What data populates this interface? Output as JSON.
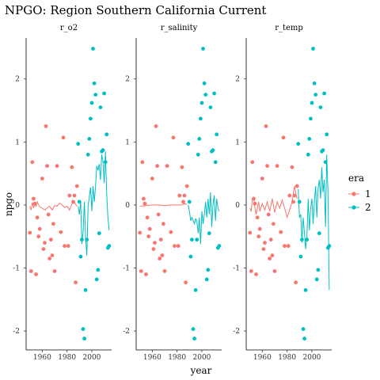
{
  "chart_data": {
    "type": "scatter",
    "title": "NPGO: Region Southern California Current",
    "xlabel": "year",
    "ylabel": "npgo",
    "xlim": [
      1947,
      2016
    ],
    "ylim": [
      -2.3,
      2.65
    ],
    "x_ticks": [
      1960,
      1980,
      2000
    ],
    "y_ticks": [
      -2,
      -1,
      0,
      1,
      2
    ],
    "grid": false,
    "legend": {
      "title": "era",
      "placement": "right",
      "entries": [
        {
          "label": "1",
          "color": "#F8766D"
        },
        {
          "label": "2",
          "color": "#00BFC4"
        }
      ]
    },
    "panels": [
      "r_o2",
      "r_salinity",
      "r_temp"
    ],
    "points": {
      "era1": [
        [
          1950,
          -0.44
        ],
        [
          1951,
          -1.05
        ],
        [
          1952,
          0.68
        ],
        [
          1953,
          0.1
        ],
        [
          1954,
          0.02
        ],
        [
          1955,
          -1.1
        ],
        [
          1956,
          -0.2
        ],
        [
          1957,
          -0.5
        ],
        [
          1958,
          -0.38
        ],
        [
          1960,
          0.42
        ],
        [
          1961,
          -0.7
        ],
        [
          1962,
          -0.6
        ],
        [
          1963,
          1.25
        ],
        [
          1964,
          0.62
        ],
        [
          1965,
          -0.15
        ],
        [
          1966,
          -0.85
        ],
        [
          1967,
          -0.55
        ],
        [
          1968,
          -0.8
        ],
        [
          1969,
          -0.3
        ],
        [
          1970,
          -1.05
        ],
        [
          1972,
          0.62
        ],
        [
          1975,
          -0.43
        ],
        [
          1977,
          1.07
        ],
        [
          1978,
          -0.65
        ],
        [
          1981,
          -0.65
        ],
        [
          1982,
          0.15
        ],
        [
          1984,
          0.6
        ],
        [
          1985,
          0.05
        ],
        [
          1986,
          0.15
        ],
        [
          1987,
          -1.23
        ],
        [
          1988,
          0.3
        ]
      ],
      "era2": [
        [
          1989,
          0.97
        ],
        [
          1990,
          0.05
        ],
        [
          1991,
          -0.82
        ],
        [
          1992,
          -0.55
        ],
        [
          1993,
          -1.97
        ],
        [
          1994,
          -2.12
        ],
        [
          1995,
          -1.35
        ],
        [
          1996,
          -0.55
        ],
        [
          1997,
          0.8
        ],
        [
          1998,
          1.05
        ],
        [
          1999,
          1.37
        ],
        [
          2000,
          1.62
        ],
        [
          2001,
          2.48
        ],
        [
          2002,
          1.93
        ],
        [
          2003,
          1.75
        ],
        [
          2004,
          -1.18
        ],
        [
          2005,
          -1.03
        ],
        [
          2006,
          -0.45
        ],
        [
          2007,
          1.55
        ],
        [
          2008,
          0.85
        ],
        [
          2009,
          0.87
        ],
        [
          2010,
          1.77
        ],
        [
          2011,
          0.68
        ],
        [
          2012,
          1.12
        ],
        [
          2013,
          -0.68
        ],
        [
          2014,
          -0.65
        ]
      ]
    },
    "series": [
      {
        "panel": "r_o2",
        "era1": [
          [
            1950,
            -0.02
          ],
          [
            1951,
            -0.08
          ],
          [
            1952,
            0.04
          ],
          [
            1953,
            -0.05
          ],
          [
            1954,
            0.02
          ],
          [
            1955,
            -0.02
          ],
          [
            1956,
            0.05
          ],
          [
            1957,
            0.0
          ],
          [
            1958,
            -0.03
          ],
          [
            1960,
            -0.05
          ],
          [
            1962,
            -0.08
          ],
          [
            1964,
            -0.05
          ],
          [
            1966,
            -0.02
          ],
          [
            1968,
            -0.08
          ],
          [
            1970,
            -0.01
          ],
          [
            1972,
            -0.02
          ],
          [
            1974,
            0.03
          ],
          [
            1976,
            0.0
          ],
          [
            1978,
            -0.04
          ],
          [
            1980,
            -0.02
          ],
          [
            1982,
            -0.08
          ],
          [
            1984,
            0.02
          ],
          [
            1986,
            0.04
          ],
          [
            1988,
            -0.02
          ]
        ],
        "era2": [
          [
            1989,
            -0.02
          ],
          [
            1990,
            -0.15
          ],
          [
            1991,
            0.05
          ],
          [
            1992,
            -0.62
          ],
          [
            1993,
            -0.42
          ],
          [
            1994,
            0.05
          ],
          [
            1995,
            -0.52
          ],
          [
            1996,
            -0.8
          ],
          [
            1997,
            0.0
          ],
          [
            1998,
            0.12
          ],
          [
            1999,
            0.28
          ],
          [
            2000,
            -0.1
          ],
          [
            2001,
            0.3
          ],
          [
            2002,
            0.05
          ],
          [
            2003,
            0.3
          ],
          [
            2004,
            0.62
          ],
          [
            2005,
            0.55
          ],
          [
            2006,
            0.65
          ],
          [
            2007,
            0.4
          ],
          [
            2008,
            0.8
          ],
          [
            2009,
            0.7
          ],
          [
            2010,
            0.35
          ],
          [
            2011,
            0.85
          ],
          [
            2012,
            0.2
          ],
          [
            2013,
            -0.2
          ],
          [
            2014,
            -0.4
          ]
        ]
      },
      {
        "panel": "r_salinity",
        "era1": [
          [
            1950,
            -0.02
          ],
          [
            1955,
            -0.01
          ],
          [
            1960,
            0.0
          ],
          [
            1965,
            0.0
          ],
          [
            1970,
            -0.01
          ],
          [
            1975,
            0.0
          ],
          [
            1980,
            0.0
          ],
          [
            1984,
            0.0
          ],
          [
            1986,
            0.02
          ],
          [
            1988,
            0.01
          ]
        ],
        "era2": [
          [
            1989,
            0.0
          ],
          [
            1990,
            -0.1
          ],
          [
            1991,
            -0.25
          ],
          [
            1992,
            -0.2
          ],
          [
            1993,
            -0.25
          ],
          [
            1994,
            -0.3
          ],
          [
            1995,
            -0.22
          ],
          [
            1996,
            -0.25
          ],
          [
            1997,
            -0.45
          ],
          [
            1998,
            -0.2
          ],
          [
            1999,
            -0.62
          ],
          [
            2000,
            -0.1
          ],
          [
            2001,
            -0.3
          ],
          [
            2002,
            -0.15
          ],
          [
            2003,
            0.05
          ],
          [
            2004,
            -0.2
          ],
          [
            2005,
            0.1
          ],
          [
            2006,
            -0.15
          ],
          [
            2007,
            0.2
          ],
          [
            2008,
            -0.35
          ],
          [
            2009,
            0.0
          ],
          [
            2010,
            0.15
          ],
          [
            2011,
            -0.25
          ],
          [
            2012,
            0.1
          ],
          [
            2013,
            -0.05
          ],
          [
            2014,
            -0.1
          ]
        ]
      },
      {
        "panel": "r_temp",
        "era1": [
          [
            1950,
            -0.05
          ],
          [
            1951,
            -0.1
          ],
          [
            1952,
            0.1
          ],
          [
            1953,
            0.12
          ],
          [
            1954,
            -0.05
          ],
          [
            1955,
            -0.15
          ],
          [
            1956,
            -0.05
          ],
          [
            1957,
            0.05
          ],
          [
            1958,
            -0.1
          ],
          [
            1960,
            0.02
          ],
          [
            1962,
            -0.08
          ],
          [
            1964,
            0.05
          ],
          [
            1966,
            -0.1
          ],
          [
            1968,
            0.1
          ],
          [
            1970,
            -0.12
          ],
          [
            1972,
            0.05
          ],
          [
            1974,
            -0.05
          ],
          [
            1976,
            0.08
          ],
          [
            1978,
            -0.05
          ],
          [
            1980,
            -0.2
          ],
          [
            1982,
            -0.08
          ],
          [
            1984,
            0.05
          ],
          [
            1986,
            0.3
          ],
          [
            1988,
            0.1
          ]
        ],
        "era2": [
          [
            1989,
            0.25
          ],
          [
            1990,
            -0.2
          ],
          [
            1991,
            -0.15
          ],
          [
            1992,
            -0.6
          ],
          [
            1993,
            -0.2
          ],
          [
            1994,
            -0.45
          ],
          [
            1995,
            -0.7
          ],
          [
            1996,
            -0.5
          ],
          [
            1997,
            0.1
          ],
          [
            1998,
            -0.4
          ],
          [
            1999,
            -0.05
          ],
          [
            2000,
            0.1
          ],
          [
            2001,
            -0.3
          ],
          [
            2002,
            0.05
          ],
          [
            2003,
            0.3
          ],
          [
            2004,
            -0.2
          ],
          [
            2005,
            0.25
          ],
          [
            2006,
            0.4
          ],
          [
            2007,
            0.1
          ],
          [
            2008,
            0.6
          ],
          [
            2009,
            0.2
          ],
          [
            2010,
            0.4
          ],
          [
            2011,
            -0.35
          ],
          [
            2012,
            0.8
          ],
          [
            2013,
            0.2
          ],
          [
            2014,
            -1.35
          ]
        ]
      }
    ]
  }
}
